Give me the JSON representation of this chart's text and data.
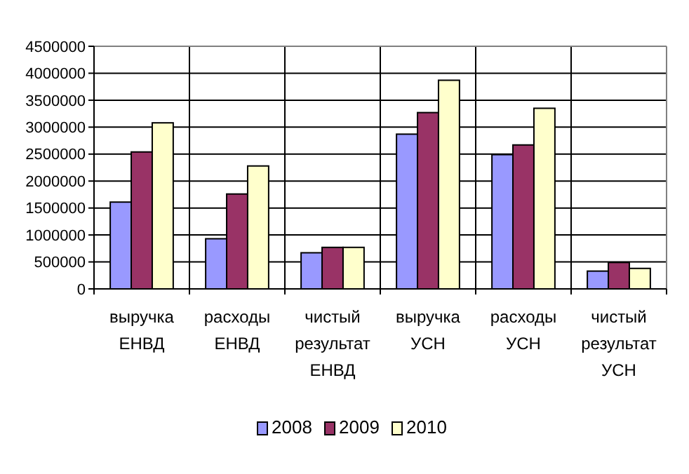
{
  "chart_data": {
    "type": "bar",
    "categories": [
      "выручка ЕНВД",
      "расходы ЕНВД",
      "чистый результат ЕНВД",
      "выручка УСН",
      "расходы УСН",
      "чистый результат УСН"
    ],
    "series": [
      {
        "name": "2008",
        "color": "#9999ff",
        "values": [
          1610000,
          930000,
          670000,
          2870000,
          2490000,
          330000
        ]
      },
      {
        "name": "2009",
        "color": "#993366",
        "values": [
          2540000,
          1760000,
          770000,
          3270000,
          2670000,
          490000
        ]
      },
      {
        "name": "2010",
        "color": "#ffffcc",
        "values": [
          3080000,
          2280000,
          770000,
          3870000,
          3350000,
          380000
        ]
      }
    ],
    "ylim": [
      0,
      4500000
    ],
    "yticks": [
      0,
      500000,
      1000000,
      1500000,
      2000000,
      2500000,
      3000000,
      3500000,
      4000000,
      4500000
    ],
    "grid": true,
    "legend": "bottom"
  }
}
